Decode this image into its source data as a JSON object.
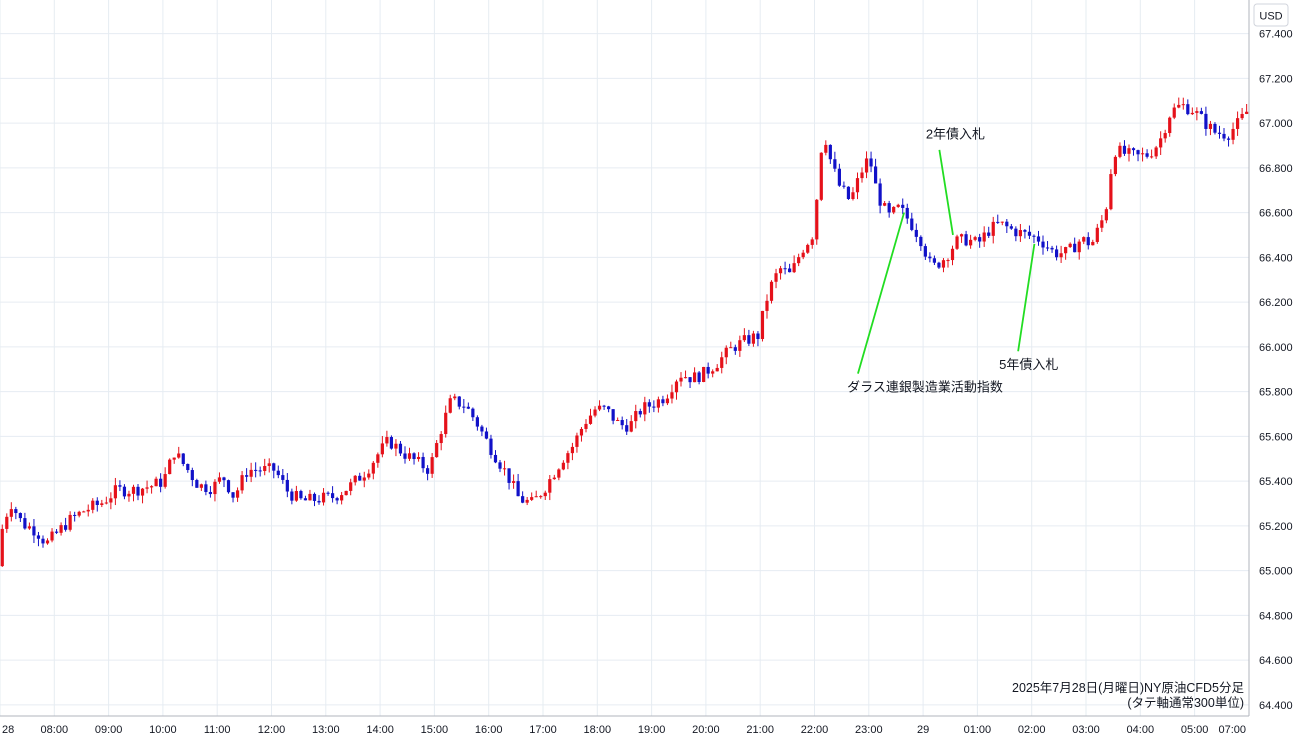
{
  "chart_data": {
    "type": "candlestick",
    "title": "2025年7月28日(月曜日)NY原油CFD5分足",
    "subtitle": "(タテ軸通常300単位)",
    "currency": "USD",
    "ylim": [
      64.35,
      67.55
    ],
    "y_ticks": [
      "67.400",
      "67.200",
      "67.000",
      "66.800",
      "66.600",
      "66.400",
      "66.200",
      "66.000",
      "65.800",
      "65.600",
      "65.400",
      "65.200",
      "65.000",
      "64.800",
      "64.600",
      "64.400"
    ],
    "x_ticks": [
      "28",
      "08:00",
      "09:00",
      "10:00",
      "11:00",
      "12:00",
      "13:00",
      "14:00",
      "15:00",
      "16:00",
      "17:00",
      "18:00",
      "19:00",
      "20:00",
      "21:00",
      "22:00",
      "23:00",
      "29",
      "01:00",
      "02:00",
      "03:00",
      "04:00",
      "05:00",
      "07:00"
    ],
    "x_tick_hours": [
      7,
      8,
      9,
      10,
      11,
      12,
      13,
      14,
      15,
      16,
      17,
      18,
      19,
      20,
      21,
      22,
      23,
      24,
      25,
      26,
      27,
      28,
      29,
      31
    ],
    "x_range_hours": [
      7.0,
      30.0
    ],
    "grid": true,
    "colors": {
      "up": "#e5111a",
      "down": "#1111c8",
      "grid": "#e6ecf2",
      "annotation_line": "#22dd22"
    },
    "price_path": [
      [
        7.0,
        65.02
      ],
      [
        7.1,
        65.22
      ],
      [
        7.25,
        65.3
      ],
      [
        7.45,
        65.21
      ],
      [
        7.7,
        65.18
      ],
      [
        7.9,
        65.12
      ],
      [
        8.1,
        65.17
      ],
      [
        8.3,
        65.22
      ],
      [
        8.6,
        65.27
      ],
      [
        8.9,
        65.3
      ],
      [
        9.2,
        65.36
      ],
      [
        9.5,
        65.36
      ],
      [
        9.85,
        65.38
      ],
      [
        10.05,
        65.4
      ],
      [
        10.25,
        65.53
      ],
      [
        10.5,
        65.45
      ],
      [
        10.7,
        65.38
      ],
      [
        10.95,
        65.37
      ],
      [
        11.15,
        65.42
      ],
      [
        11.35,
        65.33
      ],
      [
        11.6,
        65.45
      ],
      [
        11.9,
        65.45
      ],
      [
        12.1,
        65.45
      ],
      [
        12.35,
        65.35
      ],
      [
        12.6,
        65.31
      ],
      [
        12.9,
        65.32
      ],
      [
        13.2,
        65.33
      ],
      [
        13.5,
        65.38
      ],
      [
        13.8,
        65.45
      ],
      [
        14.0,
        65.52
      ],
      [
        14.2,
        65.58
      ],
      [
        14.5,
        65.52
      ],
      [
        14.75,
        65.48
      ],
      [
        14.95,
        65.45
      ],
      [
        15.15,
        65.62
      ],
      [
        15.35,
        65.76
      ],
      [
        15.6,
        65.74
      ],
      [
        15.8,
        65.67
      ],
      [
        16.0,
        65.58
      ],
      [
        16.2,
        65.5
      ],
      [
        16.4,
        65.42
      ],
      [
        16.6,
        65.32
      ],
      [
        16.85,
        65.3
      ],
      [
        17.1,
        65.38
      ],
      [
        17.4,
        65.5
      ],
      [
        17.6,
        65.56
      ],
      [
        17.8,
        65.66
      ],
      [
        18.0,
        65.72
      ],
      [
        18.2,
        65.72
      ],
      [
        18.45,
        65.65
      ],
      [
        18.65,
        65.65
      ],
      [
        18.85,
        65.72
      ],
      [
        19.1,
        65.75
      ],
      [
        19.3,
        65.78
      ],
      [
        19.55,
        65.88
      ],
      [
        19.8,
        65.86
      ],
      [
        20.0,
        65.88
      ],
      [
        20.25,
        65.93
      ],
      [
        20.55,
        66.0
      ],
      [
        20.8,
        66.03
      ],
      [
        21.0,
        66.05
      ],
      [
        21.2,
        66.25
      ],
      [
        21.4,
        66.35
      ],
      [
        21.6,
        66.32
      ],
      [
        21.8,
        66.43
      ],
      [
        22.0,
        66.5
      ],
      [
        22.1,
        66.7
      ],
      [
        22.2,
        66.98
      ],
      [
        22.35,
        66.82
      ],
      [
        22.5,
        66.72
      ],
      [
        22.7,
        66.65
      ],
      [
        22.9,
        66.78
      ],
      [
        23.05,
        66.85
      ],
      [
        23.2,
        66.68
      ],
      [
        23.4,
        66.58
      ],
      [
        23.6,
        66.62
      ],
      [
        23.8,
        66.56
      ],
      [
        24.0,
        66.48
      ],
      [
        24.2,
        66.35
      ],
      [
        24.45,
        66.4
      ],
      [
        24.65,
        66.47
      ],
      [
        24.85,
        66.48
      ],
      [
        25.05,
        66.46
      ],
      [
        25.25,
        66.52
      ],
      [
        25.45,
        66.55
      ],
      [
        25.7,
        66.52
      ],
      [
        25.95,
        66.5
      ],
      [
        26.2,
        66.48
      ],
      [
        26.45,
        66.42
      ],
      [
        26.7,
        66.42
      ],
      [
        26.95,
        66.48
      ],
      [
        27.15,
        66.46
      ],
      [
        27.4,
        66.6
      ],
      [
        27.55,
        66.88
      ],
      [
        27.8,
        66.86
      ],
      [
        28.0,
        66.85
      ],
      [
        28.2,
        66.86
      ],
      [
        28.4,
        66.92
      ],
      [
        28.6,
        67.05
      ],
      [
        28.8,
        67.08
      ],
      [
        29.0,
        67.06
      ],
      [
        29.2,
        67.01
      ],
      [
        29.4,
        66.96
      ],
      [
        29.65,
        66.95
      ],
      [
        29.85,
        67.0
      ],
      [
        30.0,
        67.05
      ]
    ],
    "annotations": [
      {
        "label": "2年債入札",
        "text_hour": 24.05,
        "text_price": 66.93,
        "line_from": [
          24.3,
          66.88
        ],
        "line_to": [
          24.55,
          66.5
        ]
      },
      {
        "label": "ダラス連銀製造業活動指数",
        "text_hour": 22.6,
        "text_price": 65.8,
        "line_from": [
          22.8,
          65.88
        ],
        "line_to": [
          23.65,
          66.6
        ]
      },
      {
        "label": "5年債入札",
        "text_hour": 25.4,
        "text_price": 65.9,
        "line_from": [
          25.75,
          65.98
        ],
        "line_to": [
          26.05,
          66.46
        ]
      }
    ]
  }
}
